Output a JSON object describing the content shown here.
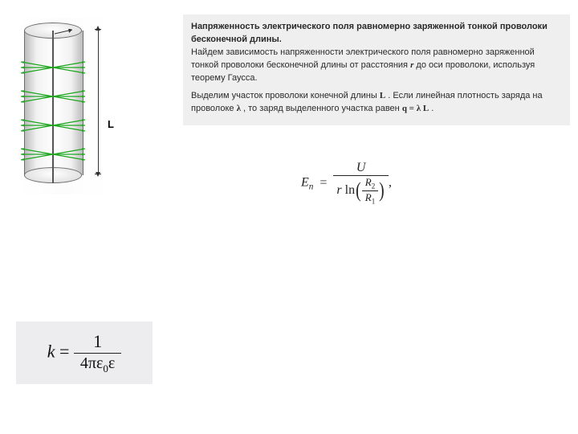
{
  "diagram": {
    "arrow_color": "#1ea71e",
    "arrow_rows_y": [
      46,
      82,
      118,
      154
    ],
    "L_label": "L",
    "wire_color": "#555555",
    "cylinder_border": "#6d6d6d"
  },
  "text": {
    "title": "Напряженность электрического поля равномерно заряженной тонкой проволоки бесконечной длины.",
    "p1a": "Найдем зависимость напряженности электрического поля равномерно заряженной тонкой проволоки бесконечной длины от расстояния ",
    "r": "r",
    "p1b": " до оси проволоки, используя теорему Гаусса.",
    "p2a": "Выделим участок проволоки конечной длины ",
    "L": "L",
    "p2b": ". Если линейная плотность заряда на проволоке ",
    "lambda": "λ",
    "p2c": ", то заряд выделенного участка равен ",
    "qeq": "q = λ L",
    "p2d": " .",
    "bg": "#f0eff0"
  },
  "formula_en": {
    "lhs_E": "E",
    "lhs_sub": "n",
    "eq": " = ",
    "num_U": "U",
    "den_r": "r",
    "den_ln": " ln",
    "R2": "R",
    "R2_sub": "2",
    "R1": "R",
    "R1_sub": "1",
    "tail": ","
  },
  "formula_k": {
    "k": "k",
    "eq": " = ",
    "num": "1",
    "den_4pi": "4π",
    "eps": "ε",
    "zero": "0",
    "eps2": "ε",
    "box_bg": "#edecee"
  }
}
